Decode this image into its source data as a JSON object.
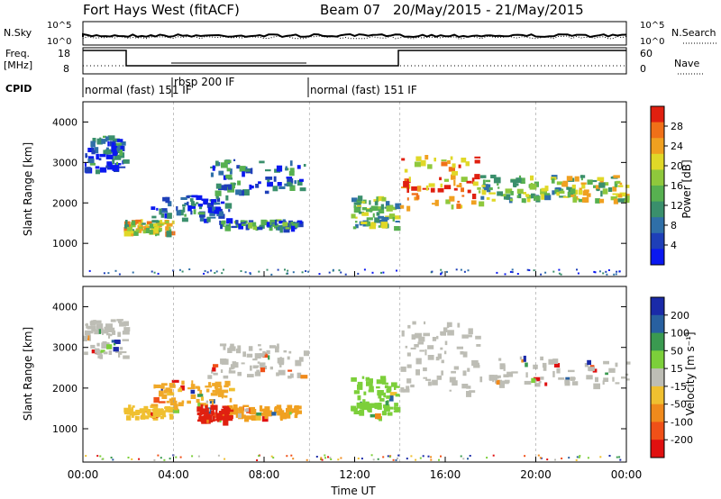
{
  "header": {
    "title": "Fort Hays West (fitACF)",
    "beam": "Beam 07",
    "date_range": "20/May/2015 - 21/May/2015"
  },
  "top_panels": {
    "nsky_label": "N.Sky",
    "nsky_ticks": [
      "10^5",
      "10^0"
    ],
    "nsearch_label": "N.Search",
    "nsearch_ticks": [
      "10^5",
      "10^0"
    ],
    "freq_label_1": "Freq.",
    "freq_label_2": "[MHz]",
    "freq_ticks": [
      "18",
      "8"
    ],
    "nave_label": "Nave",
    "nave_ticks": [
      "60",
      "0"
    ],
    "cpid_label": "CPID",
    "cpid_segments": [
      {
        "label": "normal (fast) 151 IF",
        "start_h": 0
      },
      {
        "label": "rbsp 200 IF",
        "start_h": 4
      },
      {
        "label": "normal (fast) 151 IF",
        "start_h": 10
      }
    ]
  },
  "chart_data": [
    {
      "type": "heatmap",
      "name": "power",
      "ylabel": "Slant Range [km]",
      "ylim": [
        180,
        4500
      ],
      "yticks": [
        "1000",
        "2000",
        "3000",
        "4000"
      ],
      "colorbar_label": "Power [dB]",
      "colorbar_ticks": [
        "28",
        "24",
        "20",
        "16",
        "12",
        "8",
        "4"
      ],
      "colors": [
        "#0a18f0",
        "#1e3fb8",
        "#2f6fa8",
        "#3a8f6c",
        "#57b050",
        "#8fc83c",
        "#e0d828",
        "#f0a020",
        "#f07018",
        "#e02010"
      ],
      "bands": [
        {
          "t": [
            0.0,
            1.8
          ],
          "r": [
            2800,
            3700
          ],
          "level": 0.2
        },
        {
          "t": [
            1.8,
            4.0
          ],
          "r": [
            1300,
            1600
          ],
          "level": 0.6
        },
        {
          "t": [
            3.0,
            6.5
          ],
          "r": [
            1600,
            2200
          ],
          "level": 0.2
        },
        {
          "t": [
            5.5,
            9.8
          ],
          "r": [
            2300,
            3100
          ],
          "level": 0.25
        },
        {
          "t": [
            6.0,
            9.5
          ],
          "r": [
            1400,
            1600
          ],
          "level": 0.3
        },
        {
          "t": [
            11.8,
            13.8
          ],
          "r": [
            1400,
            2200
          ],
          "level": 0.45
        },
        {
          "t": [
            14.0,
            17.5
          ],
          "r": [
            1900,
            3200
          ],
          "level": 0.75
        },
        {
          "t": [
            17.5,
            21.0
          ],
          "r": [
            2100,
            2700
          ],
          "level": 0.45
        },
        {
          "t": [
            21.0,
            24.0
          ],
          "r": [
            2100,
            2700
          ],
          "level": 0.55
        }
      ]
    },
    {
      "type": "heatmap",
      "name": "velocity",
      "xlabel": "Time UT",
      "xticks": [
        "00:00",
        "04:00",
        "08:00",
        "12:00",
        "16:00",
        "20:00",
        "00:00"
      ],
      "ylabel": "Slant Range [km]",
      "ylim": [
        180,
        4500
      ],
      "yticks": [
        "1000",
        "2000",
        "3000",
        "4000"
      ],
      "colorbar_label": "Velocity [m s⁻¹]",
      "colorbar_ticks": [
        "200",
        "100",
        "50",
        "15",
        "-15",
        "-50",
        "-100",
        "-200"
      ],
      "colors": [
        "#1a2aa8",
        "#2860a0",
        "#3a9a50",
        "#7ccf3a",
        "#bdbdb5",
        "#f0c030",
        "#f08a1c",
        "#f05018",
        "#e01010"
      ],
      "bands": [
        {
          "t": [
            0.0,
            1.8
          ],
          "r": [
            2800,
            3700
          ],
          "color": "#bdbdb5"
        },
        {
          "t": [
            1.8,
            4.0
          ],
          "r": [
            1300,
            1600
          ],
          "color": "#f0c030"
        },
        {
          "t": [
            3.0,
            6.5
          ],
          "r": [
            1600,
            2200
          ],
          "color": "#f0a828"
        },
        {
          "t": [
            5.5,
            9.8
          ],
          "r": [
            2300,
            3100
          ],
          "color": "#bdbdb5"
        },
        {
          "t": [
            6.0,
            9.5
          ],
          "r": [
            1300,
            1600
          ],
          "color": "#f0a020"
        },
        {
          "t": [
            5.0,
            6.5
          ],
          "r": [
            1200,
            1600
          ],
          "color": "#e02010"
        },
        {
          "t": [
            11.8,
            13.8
          ],
          "r": [
            1300,
            2300
          ],
          "color": "#7ccf3a"
        },
        {
          "t": [
            14.0,
            17.5
          ],
          "r": [
            1900,
            3700
          ],
          "color": "#bdbdb5"
        },
        {
          "t": [
            17.5,
            24.0
          ],
          "r": [
            2100,
            2800
          ],
          "color": "#bdbdb5"
        }
      ]
    }
  ]
}
